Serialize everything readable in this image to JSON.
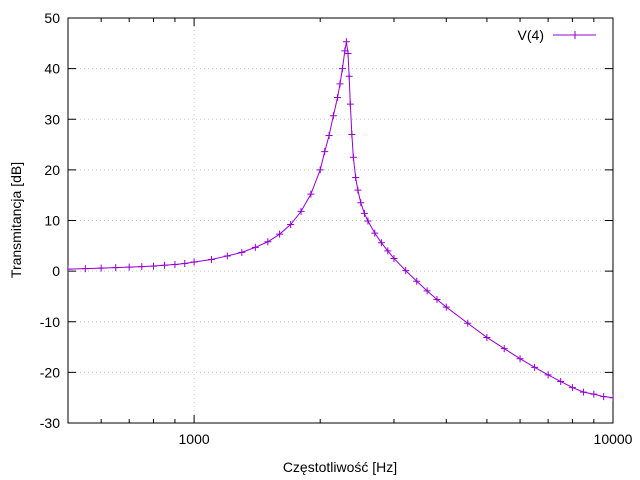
{
  "chart_data": {
    "type": "line",
    "xlabel": "Częstotliwość [Hz]",
    "ylabel": "Transmitancja [dB]",
    "x_scale": "log",
    "xlim": [
      500,
      10000
    ],
    "ylim": [
      -30,
      50
    ],
    "grid": true,
    "legend_position": "top-right",
    "x_ticks": [
      1000,
      10000
    ],
    "x_tick_labels": [
      "1000",
      "10000"
    ],
    "y_ticks": [
      -30,
      -20,
      -10,
      0,
      10,
      20,
      30,
      40,
      50
    ],
    "y_tick_labels": [
      "-30",
      "-20",
      "-10",
      "0",
      "10",
      "20",
      "30",
      "40",
      "50"
    ],
    "series": [
      {
        "name": "V(4)",
        "color": "#9400d3",
        "marker": "+",
        "x": [
          500,
          550,
          600,
          650,
          700,
          750,
          800,
          850,
          900,
          950,
          1000,
          1100,
          1200,
          1300,
          1400,
          1500,
          1600,
          1700,
          1800,
          1900,
          2000,
          2050,
          2100,
          2150,
          2200,
          2230,
          2260,
          2290,
          2310,
          2330,
          2345,
          2360,
          2380,
          2400,
          2430,
          2460,
          2500,
          2550,
          2600,
          2700,
          2800,
          2900,
          3000,
          3200,
          3400,
          3600,
          3800,
          4000,
          4500,
          5000,
          5500,
          6000,
          6500,
          7000,
          7500,
          8000,
          8500,
          9000,
          9500,
          10000
        ],
        "values": [
          0.4,
          0.5,
          0.6,
          0.7,
          0.8,
          0.9,
          1.0,
          1.15,
          1.3,
          1.5,
          1.8,
          2.3,
          3.0,
          3.7,
          4.7,
          5.8,
          7.3,
          9.2,
          11.8,
          15.2,
          20.0,
          23.6,
          26.8,
          30.7,
          34.3,
          37.0,
          40.0,
          43.5,
          45.3,
          43.0,
          38.5,
          33.0,
          27.0,
          22.5,
          18.5,
          16.0,
          13.5,
          11.4,
          9.9,
          7.5,
          5.6,
          4.0,
          2.5,
          0.1,
          -2.0,
          -3.9,
          -5.6,
          -7.1,
          -10.3,
          -13.1,
          -15.3,
          -17.3,
          -19.0,
          -20.5,
          -21.8,
          -23.0,
          -23.9,
          -24.3,
          -24.8,
          -25.0
        ]
      }
    ]
  }
}
